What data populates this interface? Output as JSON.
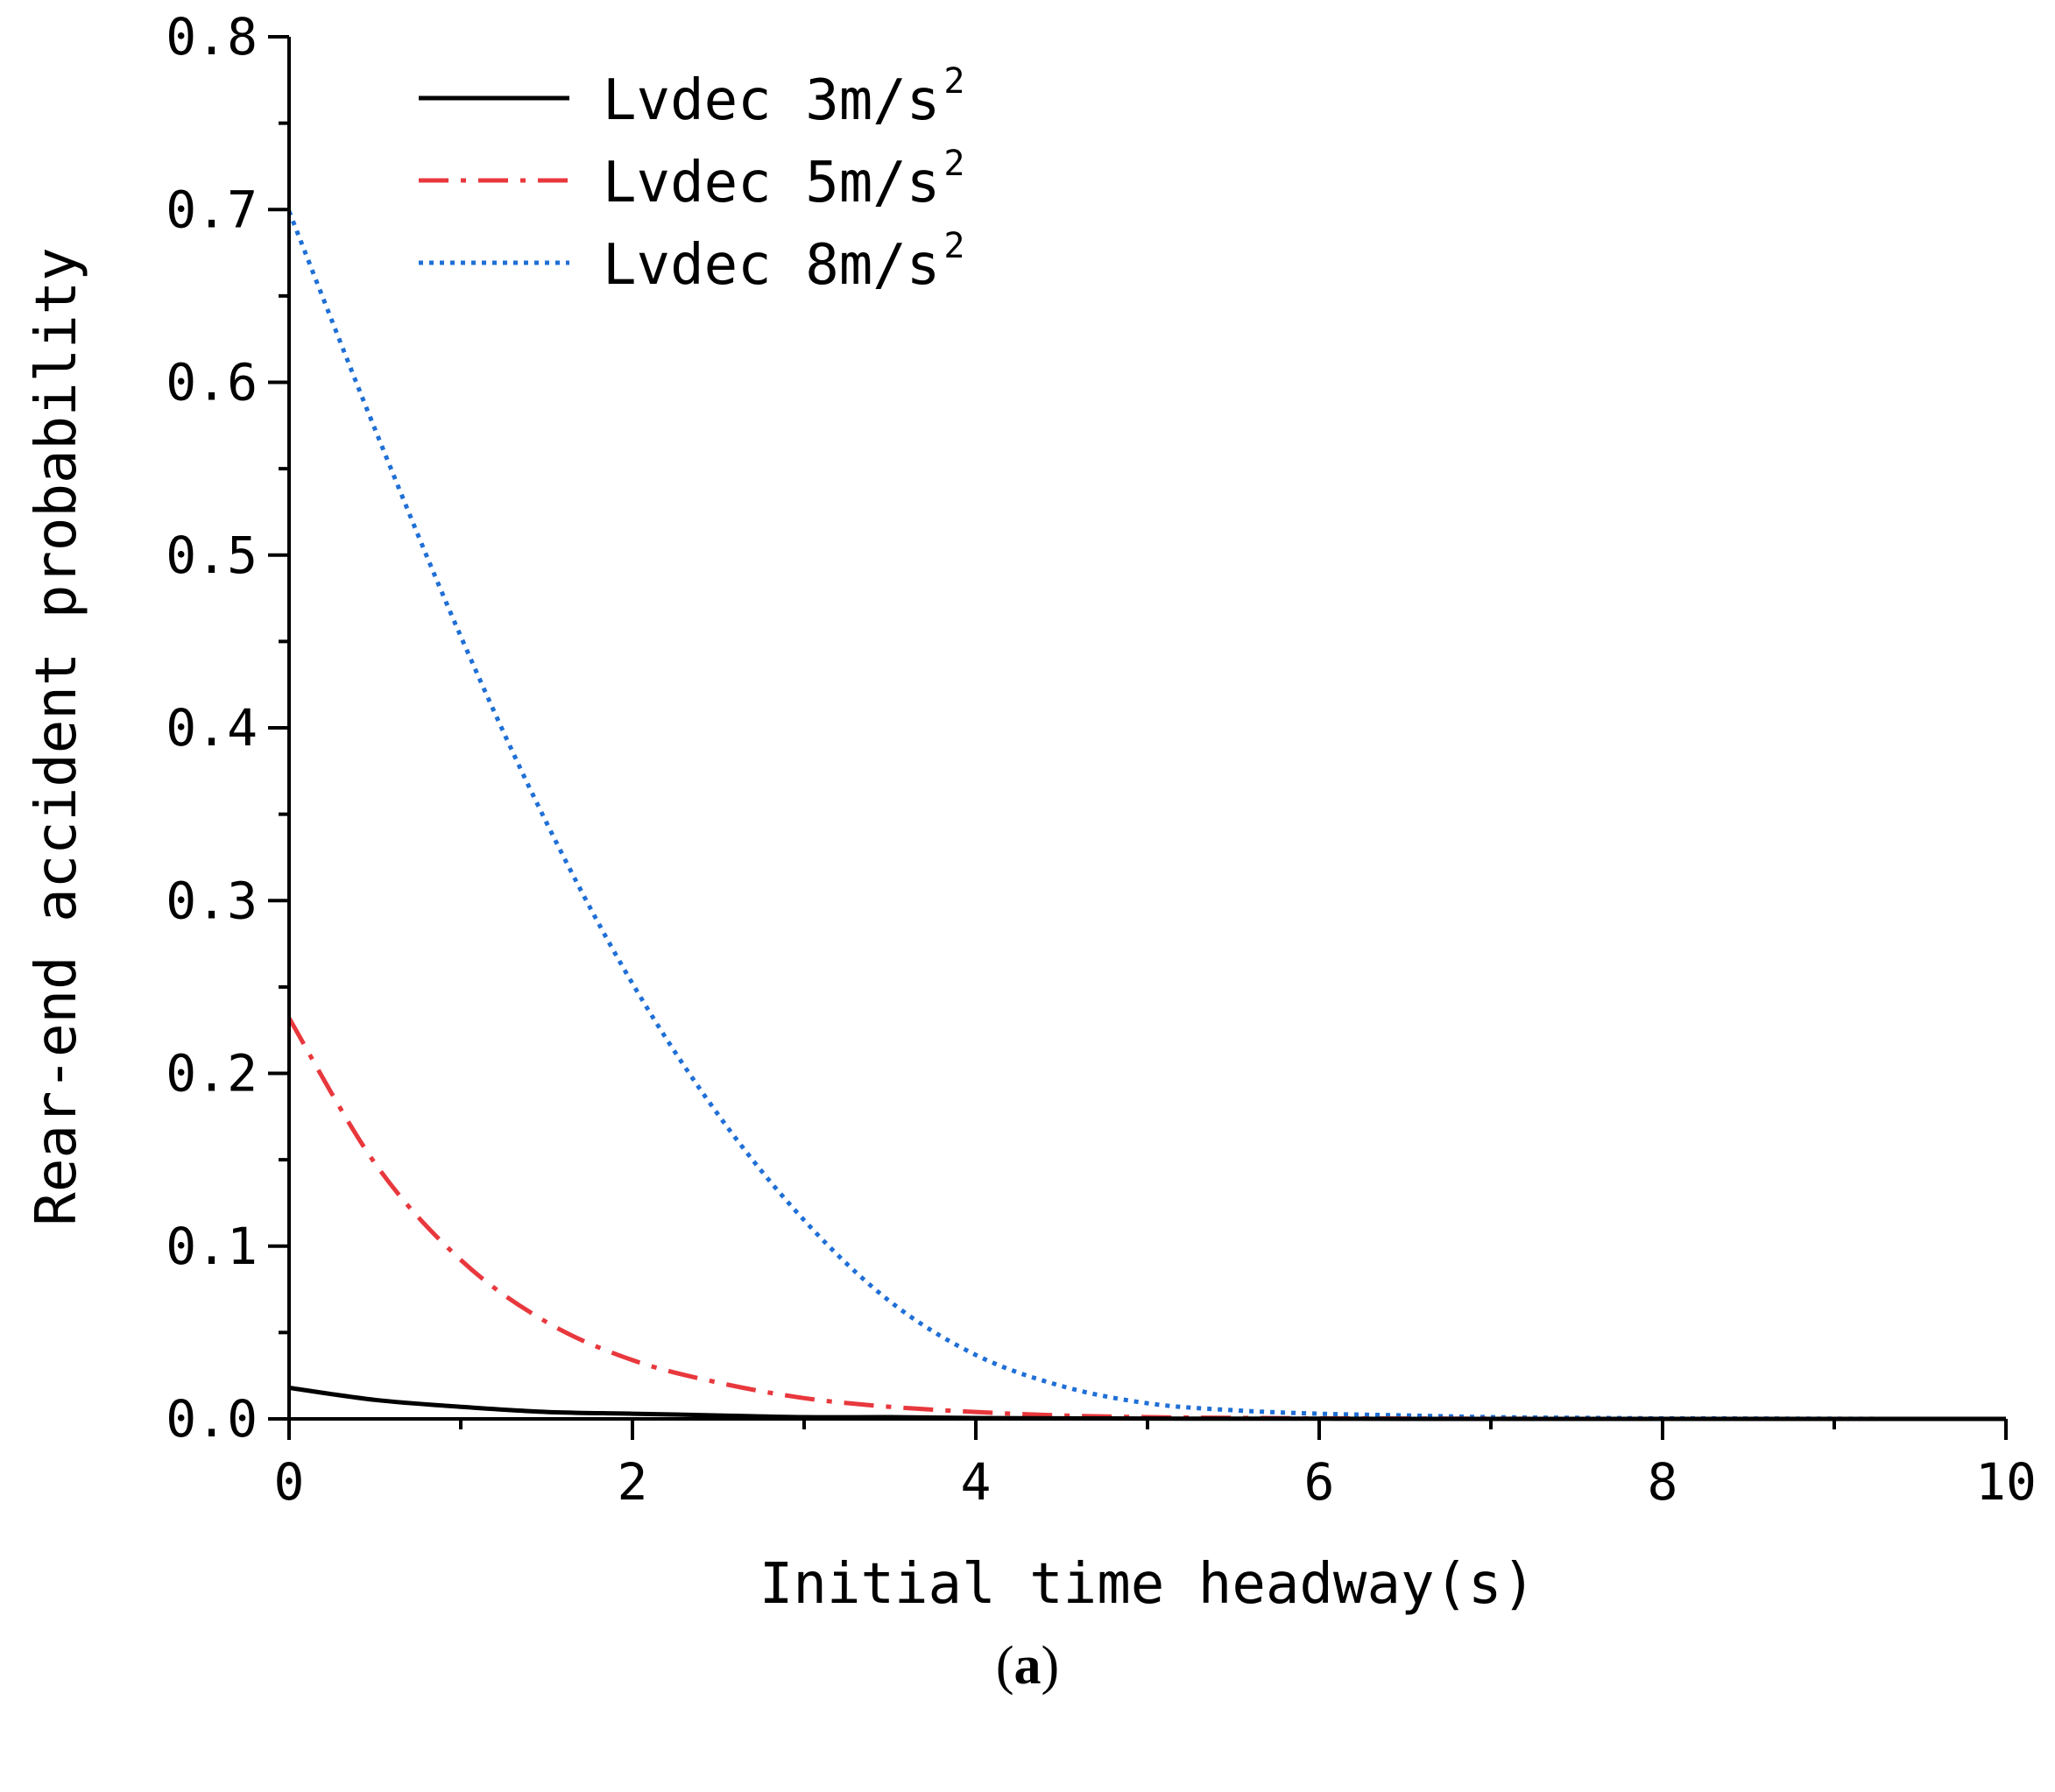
{
  "chart_data": {
    "type": "line",
    "xlabel": "Initial time headway(s)",
    "ylabel": "Rear-end accident probability",
    "xlim": [
      0,
      10
    ],
    "ylim": [
      0,
      0.8
    ],
    "x_ticks": [
      0,
      2,
      4,
      6,
      8,
      10
    ],
    "x_tick_labels": [
      "0",
      "2",
      "4",
      "6",
      "8",
      "10"
    ],
    "y_ticks": [
      0,
      0.1,
      0.2,
      0.3,
      0.4,
      0.5,
      0.6,
      0.7,
      0.8
    ],
    "y_tick_labels": [
      "0.0",
      "0.1",
      "0.2",
      "0.3",
      "0.4",
      "0.5",
      "0.6",
      "0.7",
      "0.8"
    ],
    "grid": false,
    "legend_position": "top-left",
    "x": [
      0,
      0.5,
      1,
      1.5,
      2,
      2.5,
      3,
      3.5,
      4,
      4.5,
      5,
      5.5,
      6,
      6.5,
      7,
      7.5,
      8,
      8.5,
      9,
      9.5,
      10
    ],
    "series": [
      {
        "name": "Lvdec 3m/s2",
        "label_main": "Lvdec 3m/s",
        "label_sup": "2",
        "color": "#000000",
        "style": "solid",
        "values": [
          0.018,
          0.011,
          0.007,
          0.004,
          0.003,
          0.002,
          0.001,
          0.001,
          0.0005,
          0.0003,
          0.0002,
          0.0001,
          0.0001,
          0,
          0,
          0,
          0,
          0,
          0,
          0,
          0
        ]
      },
      {
        "name": "Lvdec 5m/s2",
        "label_main": "Lvdec 5m/s",
        "label_sup": "2",
        "color": "#e8383d",
        "style": "dashdot",
        "values": [
          0.232,
          0.148,
          0.092,
          0.056,
          0.034,
          0.021,
          0.012,
          0.007,
          0.004,
          0.002,
          0.001,
          0.0006,
          0.0003,
          0.0002,
          0.0001,
          0,
          0,
          0,
          0,
          0,
          0
        ]
      },
      {
        "name": "Lvdec 8m/s2",
        "label_main": "Lvdec 8m/s",
        "label_sup": "2",
        "color": "#1f6fd6",
        "style": "dotted",
        "values": [
          0.699,
          0.573,
          0.453,
          0.345,
          0.252,
          0.176,
          0.115,
          0.068,
          0.037,
          0.019,
          0.009,
          0.005,
          0.003,
          0.002,
          0.001,
          0.0006,
          0.0003,
          0.0002,
          0.0001,
          0,
          0
        ]
      }
    ]
  },
  "caption": {
    "open": "(",
    "letter": "a",
    "close": ")"
  }
}
